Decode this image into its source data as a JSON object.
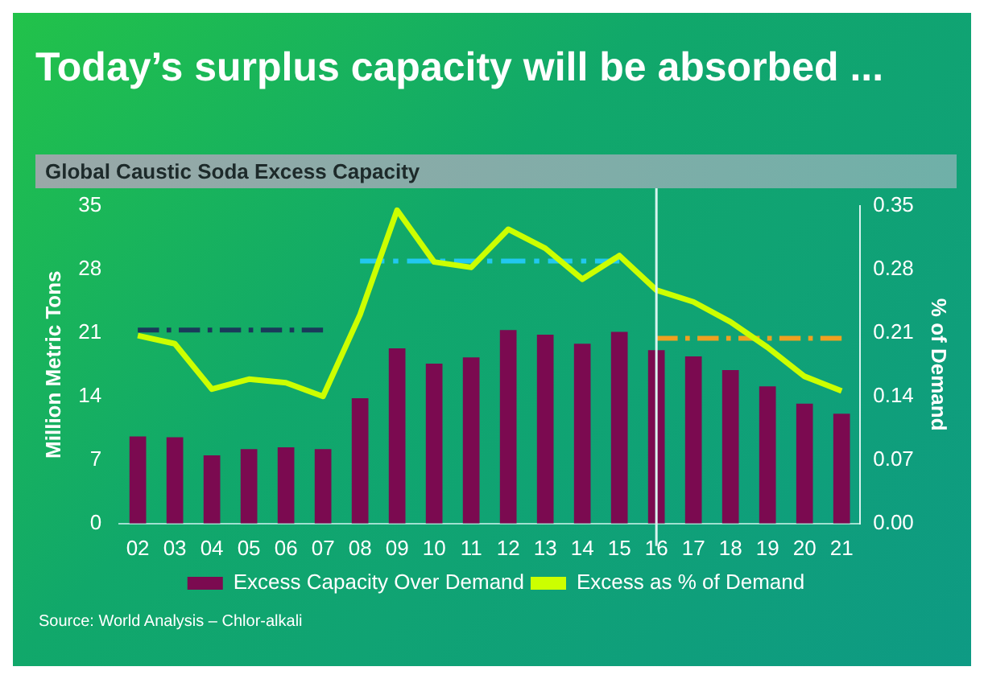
{
  "chart_data": {
    "type": "bar",
    "title": "Today’s surplus capacity will be absorbed ...",
    "subtitle": "Global Caustic Soda Excess Capacity",
    "ylabel": "Million Metric Tons",
    "y2label": "% of Demand",
    "categories": [
      "02",
      "03",
      "04",
      "05",
      "06",
      "07",
      "08",
      "09",
      "10",
      "11",
      "12",
      "13",
      "14",
      "15",
      "16",
      "17",
      "18",
      "19",
      "20",
      "21"
    ],
    "series": [
      {
        "name": "Excess Capacity Over Demand",
        "color": "#7b0a50",
        "values": [
          9.6,
          9.5,
          7.5,
          8.2,
          8.4,
          8.2,
          13.8,
          19.3,
          17.6,
          18.3,
          21.3,
          20.8,
          19.8,
          21.1,
          19.1,
          18.4,
          16.9,
          15.1,
          13.2,
          12.1
        ]
      },
      {
        "name": "Excess as % of Demand",
        "type": "line",
        "axis": "y2",
        "color": "#ccff00",
        "values": [
          0.207,
          0.198,
          0.148,
          0.159,
          0.155,
          0.14,
          0.23,
          0.345,
          0.288,
          0.282,
          0.324,
          0.303,
          0.269,
          0.295,
          0.257,
          0.244,
          0.222,
          0.194,
          0.162,
          0.146
        ]
      },
      {
        "type": "line",
        "axis": "y2",
        "color": "#1a3a5a",
        "line_style": "dashed",
        "x": [
          "02",
          "07"
        ],
        "values": [
          0.213,
          0.213
        ]
      },
      {
        "type": "line",
        "axis": "y2",
        "color": "#22c8f0",
        "line_style": "dashed",
        "x": [
          "08",
          "15"
        ],
        "values": [
          0.289,
          0.289
        ]
      },
      {
        "type": "line",
        "axis": "y2",
        "color": "#f0a020",
        "line_style": "dashed",
        "x": [
          "16",
          "21"
        ],
        "values": [
          0.204,
          0.204
        ]
      }
    ],
    "ylim": [
      0,
      35
    ],
    "yticks": [
      0,
      7,
      14,
      21,
      28,
      35
    ],
    "y2lim": [
      0,
      0.35
    ],
    "y2ticks": [
      {
        "value": 0,
        "label": "0.00"
      },
      0.07,
      0.14,
      0.21,
      0.28,
      0.35
    ],
    "ref_lines": [
      {
        "axis": "x",
        "value": "16",
        "color": "#d8f4f0"
      }
    ],
    "marker": "none",
    "legend": "bottom",
    "annotations": [
      "Source: World Analysis – Chlor-alkali"
    ]
  }
}
